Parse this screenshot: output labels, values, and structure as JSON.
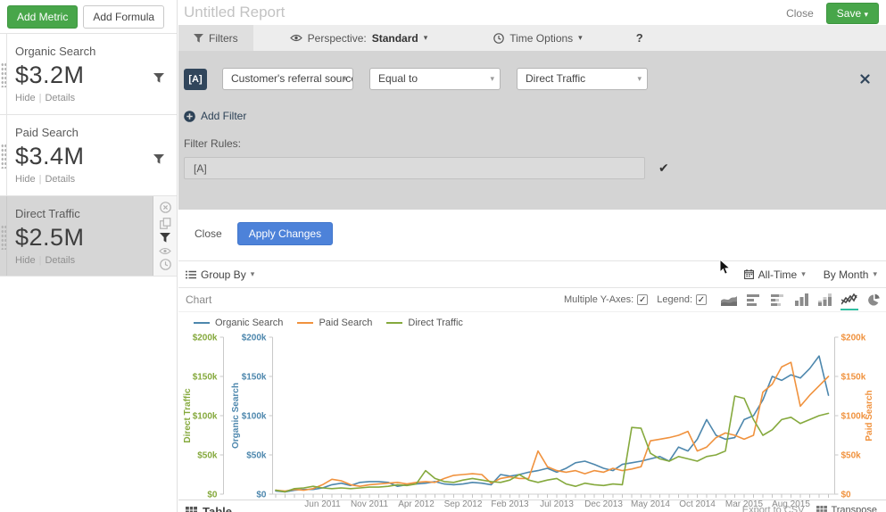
{
  "header": {
    "title": "Untitled Report",
    "close_label": "Close",
    "save_label": "Save"
  },
  "sidebar": {
    "add_metric_label": "Add Metric",
    "add_formula_label": "Add Formula",
    "metrics": [
      {
        "name": "Organic Search",
        "value": "$3.2M",
        "hide_label": "Hide",
        "details_label": "Details",
        "selected": false
      },
      {
        "name": "Paid Search",
        "value": "$3.4M",
        "hide_label": "Hide",
        "details_label": "Details",
        "selected": false
      },
      {
        "name": "Direct Traffic",
        "value": "$2.5M",
        "hide_label": "Hide",
        "details_label": "Details",
        "selected": true
      }
    ]
  },
  "tabs": {
    "filters_label": "Filters",
    "perspective_prefix": "Perspective:",
    "perspective_value": "Standard",
    "time_options_label": "Time Options",
    "help_label": "?"
  },
  "filter_panel": {
    "badge": "[A]",
    "field_dropdown": "Customer's referral source",
    "operator_dropdown": "Equal to",
    "value_dropdown": "Direct Traffic",
    "add_filter_label": "Add Filter",
    "rules_label": "Filter Rules:",
    "rules_value": "[A]",
    "check_glyph": "✔"
  },
  "apply_bar": {
    "close_label": "Close",
    "apply_label": "Apply Changes"
  },
  "toolbar": {
    "group_by_label": "Group By",
    "time_range_label": "All-Time",
    "granularity_label": "By Month"
  },
  "chart_header": {
    "title": "Chart",
    "multiple_y_axes_label": "Multiple Y-Axes:",
    "multiple_y_axes_checked": true,
    "legend_label": "Legend:",
    "legend_checked": true,
    "chart_types": [
      "area",
      "bar-horizontal",
      "bar-horizontal-stacked",
      "bar-vertical",
      "bar-vertical-stacked",
      "line",
      "pie"
    ],
    "selected_type": "line"
  },
  "chart_data": {
    "type": "line",
    "values_unit": "USD thousands per month",
    "x_range_note": "monthly points Jan 2011 - Dec 2015",
    "x_tick_labels": [
      "Jun 2011",
      "Nov 2011",
      "Apr 2012",
      "Sep 2012",
      "Feb 2013",
      "Jul 2013",
      "Dec 2013",
      "May 2014",
      "Oct 2014",
      "Mar 2015",
      "Aug 2015"
    ],
    "x_tick_start_index": 5,
    "x_tick_interval": 5,
    "ylim": [
      0,
      200
    ],
    "y_tick_values": [
      0,
      50,
      100,
      150,
      200
    ],
    "y_tick_labels": [
      "$0",
      "$50k",
      "$100k",
      "$150k",
      "$200k"
    ],
    "legend_position": "top-left",
    "grid": false,
    "axes": [
      {
        "title": "Direct Traffic",
        "color": "#85a93d",
        "side": "left"
      },
      {
        "title": "Organic Search",
        "color": "#4d87ad",
        "side": "left"
      },
      {
        "title": "Paid Search",
        "color": "#f0923e",
        "side": "right"
      }
    ],
    "series": [
      {
        "name": "Organic Search",
        "color": "#4d87ad",
        "values": [
          4,
          3,
          5,
          6,
          6,
          8,
          12,
          14,
          11,
          15,
          16,
          16,
          15,
          10,
          12,
          13,
          14,
          16,
          13,
          12,
          13,
          15,
          14,
          12,
          25,
          23,
          25,
          28,
          30,
          33,
          28,
          33,
          40,
          42,
          38,
          33,
          30,
          38,
          40,
          42,
          45,
          48,
          42,
          60,
          55,
          70,
          95,
          75,
          70,
          72,
          95,
          100,
          120,
          150,
          145,
          152,
          148,
          160,
          176,
          126
        ]
      },
      {
        "name": "Paid Search",
        "color": "#f0923e",
        "values": [
          5,
          4,
          6,
          5,
          7,
          12,
          19,
          17,
          12,
          10,
          12,
          13,
          14,
          15,
          13,
          15,
          16,
          15,
          20,
          24,
          25,
          26,
          25,
          14,
          20,
          22,
          20,
          20,
          55,
          35,
          30,
          28,
          30,
          26,
          30,
          28,
          33,
          30,
          32,
          35,
          68,
          70,
          72,
          75,
          80,
          55,
          60,
          72,
          78,
          75,
          70,
          75,
          130,
          140,
          162,
          168,
          112,
          126,
          138,
          150
        ]
      },
      {
        "name": "Direct Traffic",
        "color": "#85a93d",
        "values": [
          5,
          3,
          7,
          8,
          10,
          8,
          7,
          8,
          7,
          8,
          9,
          9,
          10,
          12,
          11,
          13,
          30,
          20,
          16,
          15,
          18,
          20,
          18,
          16,
          15,
          18,
          25,
          18,
          15,
          18,
          20,
          13,
          10,
          14,
          12,
          11,
          13,
          12,
          85,
          84,
          52,
          45,
          42,
          48,
          45,
          42,
          48,
          50,
          55,
          125,
          122,
          95,
          75,
          82,
          95,
          98,
          90,
          95,
          100,
          103
        ]
      }
    ]
  },
  "footer": {
    "table_label": "Table",
    "export_label": "Export to CSV",
    "transpose_label": "Transpose"
  },
  "colors": {
    "accent_green_button": "#48a64a",
    "accent_blue_button": "#4d82d9",
    "navy": "#31465c",
    "selected_tab_underline": "#2fbea0",
    "panel_gray": "#d4d4d4",
    "series_blue": "#4d87ad",
    "series_orange": "#f0923e",
    "series_green": "#85a93d"
  },
  "icons": {
    "filter-icon": "funnel",
    "eye-icon": "eye",
    "clock-icon": "clock",
    "calendar-icon": "calendar grid",
    "list-icon": "bulleted list",
    "plus-circle-icon": "⊕",
    "close-x-icon": "✕",
    "check-icon": "✓",
    "caret-down-icon": "▾",
    "close-circle-icon": "⊗",
    "copy-icon": "two pages",
    "area-chart-icon": "stacked waves",
    "bar-horizontal-icon": "horizontal bars",
    "bar-horizontal-stacked-icon": "horizontal bars two-tone",
    "bar-vertical-icon": "vertical bars",
    "bar-vertical-stacked-icon": "vertical bars two-tone",
    "line-chart-icon": "crossing zigzag lines",
    "pie-chart-icon": "pie with slice",
    "grid-icon": "3x3 grid",
    "drag-handle-icon": "dot matrix",
    "mouse-cursor": "arrow pointer"
  }
}
